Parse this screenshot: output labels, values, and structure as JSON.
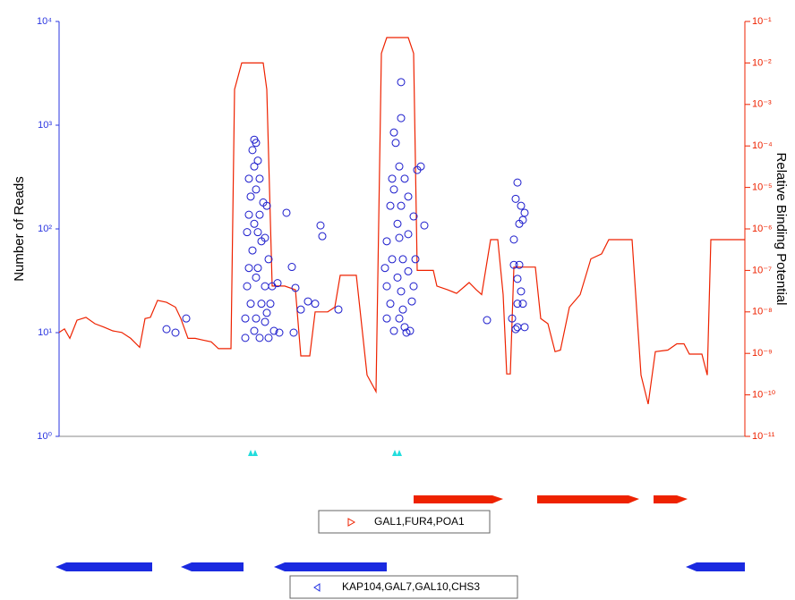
{
  "chart_data": {
    "type": "combo",
    "ylabel": "Number of Reads",
    "y2label": "Relative Binding Potential",
    "xlim": [
      0,
      766
    ],
    "ylim": [
      1,
      10000
    ],
    "yscale": "log",
    "yticks": [
      {
        "value": 1,
        "label": "10⁰"
      },
      {
        "value": 10,
        "label": "10¹"
      },
      {
        "value": 100,
        "label": "10²"
      },
      {
        "value": 1000,
        "label": "10³"
      },
      {
        "value": 10000,
        "label": "10⁴"
      }
    ],
    "y2lim": [
      1e-11,
      0.1
    ],
    "y2scale": "log",
    "y2ticks": [
      {
        "value": 1e-11,
        "label": "10⁻¹¹"
      },
      {
        "value": 1e-10,
        "label": "10⁻¹⁰"
      },
      {
        "value": 1e-09,
        "label": "10⁻⁹"
      },
      {
        "value": 1e-08,
        "label": "10⁻⁸"
      },
      {
        "value": 1e-07,
        "label": "10⁻⁷"
      },
      {
        "value": 1e-06,
        "label": "10⁻⁶"
      },
      {
        "value": 1e-05,
        "label": "10⁻⁵"
      },
      {
        "value": 0.0001,
        "label": "10⁻⁴"
      },
      {
        "value": 0.001,
        "label": "10⁻³"
      },
      {
        "value": 0.01,
        "label": "10⁻²"
      },
      {
        "value": 0.1,
        "label": "10⁻¹"
      }
    ],
    "y_color": "#2a35e0",
    "y2_color": "#ee2200",
    "series": [
      {
        "type": "line",
        "axis": "y2",
        "color": "#ee2200",
        "x": [
          0,
          6,
          12,
          20,
          30,
          40,
          50,
          60,
          70,
          80,
          90,
          96,
          102,
          110,
          120,
          130,
          136,
          144,
          152,
          160,
          170,
          178,
          192,
          196,
          204,
          228,
          232,
          238,
          252,
          264,
          270,
          280,
          286,
          300,
          308,
          314,
          332,
          344,
          354,
          360,
          366,
          390,
          396,
          400,
          418,
          422,
          434,
          444,
          458,
          466,
          472,
          482,
          490,
          496,
          500,
          504,
          508,
          532,
          538,
          546,
          554,
          560,
          570,
          582,
          594,
          606,
          614,
          640,
          650,
          658,
          666,
          680,
          690,
          698,
          704,
          718,
          724,
          728,
          766
        ],
        "values": [
          3.2e-09,
          3.9e-09,
          2.3e-09,
          6.3e-09,
          7.4e-09,
          5.2e-09,
          4.3e-09,
          3.5e-09,
          3.2e-09,
          2.3e-09,
          1.4e-09,
          6.9e-09,
          7.4e-09,
          1.9e-08,
          1.7e-08,
          1.3e-08,
          6.9e-09,
          2.3e-09,
          2.3e-09,
          2.1e-09,
          1.9e-09,
          1.3e-09,
          1.3e-09,
          0.0023,
          0.01,
          0.01,
          0.0023,
          4.2e-08,
          4.2e-08,
          3.4e-08,
          8.7e-10,
          8.7e-10,
          1e-08,
          1e-08,
          1.3e-08,
          7.6e-08,
          7.6e-08,
          3e-10,
          1.2e-10,
          0.017,
          0.041,
          0.041,
          0.017,
          1e-07,
          1e-07,
          4.2e-08,
          3.4e-08,
          2.8e-08,
          5.1e-08,
          3.4e-08,
          2.6e-08,
          5.5e-07,
          5.5e-07,
          2.6e-08,
          3.2e-10,
          3.2e-10,
          1.2e-07,
          1.2e-07,
          6.9e-09,
          5.2e-09,
          1.1e-09,
          1.2e-09,
          1.3e-08,
          2.6e-08,
          1.9e-07,
          2.5e-07,
          5.5e-07,
          5.5e-07,
          3e-10,
          6e-11,
          1.1e-09,
          1.2e-09,
          1.7e-09,
          1.7e-09,
          9.6e-10,
          9.6e-10,
          3e-10,
          5.5e-07,
          5.5e-07
        ]
      },
      {
        "type": "scatter",
        "axis": "y",
        "color": "#1a1acc",
        "x": [
          218,
          220,
          216,
          222,
          218,
          212,
          224,
          220,
          228,
          214,
          232,
          212,
          218,
          224,
          222,
          210,
          230,
          216,
          226,
          212,
          222,
          234,
          210,
          220,
          230,
          238,
          244,
          214,
          226,
          236,
          208,
          220,
          232,
          208,
          218,
          224,
          234,
          240,
          246,
          230,
          254,
          260,
          264,
          270,
          278,
          286,
          292,
          294,
          312,
          262,
          142,
          120,
          130,
          382,
          382,
          374,
          376,
          380,
          404,
          400,
          372,
          386,
          374,
          390,
          370,
          382,
          396,
          378,
          408,
          366,
          380,
          390,
          372,
          384,
          398,
          364,
          378,
          390,
          366,
          382,
          396,
          370,
          384,
          394,
          366,
          380,
          392,
          374,
          386,
          388,
          478,
          512,
          510,
          516,
          520,
          514,
          518,
          508,
          508,
          514,
          512,
          516,
          512,
          506,
          518,
          512,
          520,
          510
        ],
        "values": [
          725,
          675,
          575,
          455,
          400,
          305,
          305,
          240,
          180,
          205,
          167,
          137,
          112,
          137,
          93,
          93,
          82,
          62,
          76,
          42,
          42,
          51,
          28,
          34,
          28,
          28,
          30,
          19,
          19,
          19,
          13.7,
          13.7,
          15.5,
          8.9,
          10.4,
          8.9,
          8.9,
          10.4,
          10,
          12.7,
          143,
          43,
          27,
          16.7,
          20,
          19,
          108,
          85,
          16.7,
          10,
          13.7,
          10.8,
          10,
          2600,
          1170,
          850,
          675,
          400,
          400,
          370,
          305,
          305,
          240,
          205,
          167,
          167,
          132,
          112,
          108,
          76,
          82,
          89,
          51,
          51,
          51,
          42,
          34,
          39,
          28,
          25,
          28,
          19,
          16.7,
          20,
          13.7,
          13.7,
          10.4,
          10.4,
          11.3,
          10,
          13.2,
          280,
          195,
          167,
          143,
          112,
          122,
          79,
          45,
          45,
          33,
          25,
          19,
          13.7,
          19,
          11.3,
          11.3,
          10.8
        ]
      }
    ]
  },
  "tracks": [
    {
      "label": "GAL1,FUR4,POA1"
    },
    {
      "label": "KAP104,GAL7,GAL10,CHS3"
    }
  ]
}
